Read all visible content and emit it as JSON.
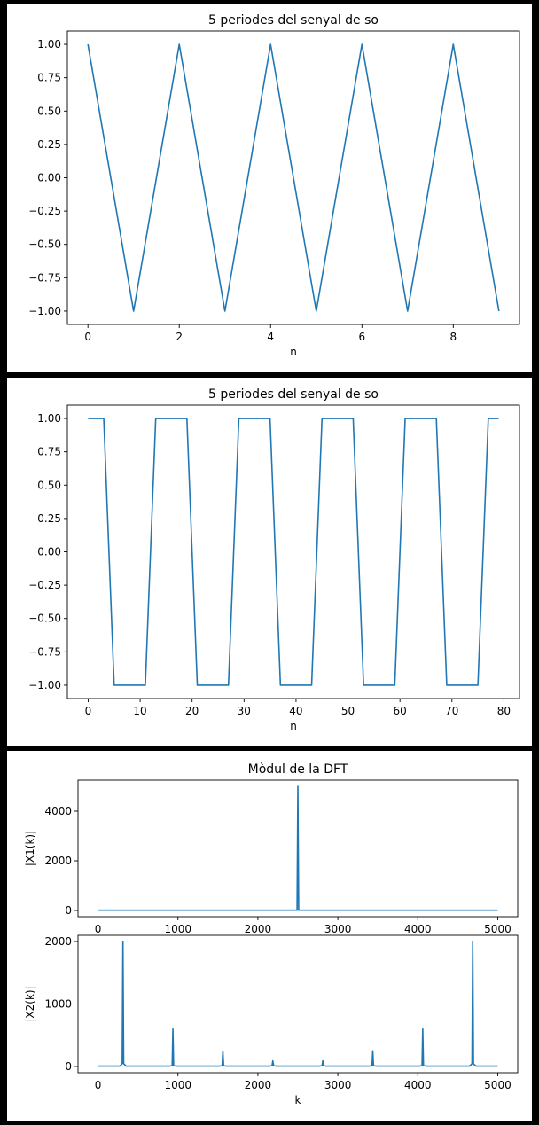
{
  "colors": {
    "line": "#1f77b4",
    "background": "#000000",
    "panel": "#ffffff"
  },
  "chart_data": [
    {
      "type": "line",
      "title": "5 periodes del senyal de so",
      "xlabel": "n",
      "ylabel": "",
      "xlim": [
        -0.45,
        9.45
      ],
      "ylim": [
        -1.1,
        1.1
      ],
      "xticks": [
        0,
        2,
        4,
        6,
        8
      ],
      "yticks": [
        1.0,
        0.75,
        0.5,
        0.25,
        0.0,
        -0.25,
        -0.5,
        -0.75,
        -1.0
      ],
      "ytick_labels": [
        "1.00",
        "0.75",
        "0.50",
        "0.25",
        "0.00",
        "−0.25",
        "−0.50",
        "−0.75",
        "−1.00"
      ],
      "xtick_labels": [
        "0",
        "2",
        "4",
        "6",
        "8"
      ],
      "series": [
        {
          "x": [
            0,
            1,
            2,
            3,
            4,
            5,
            6,
            7,
            8,
            9
          ],
          "values": [
            1,
            -1,
            1,
            -1,
            1,
            -1,
            1,
            -1,
            1,
            -1
          ]
        }
      ]
    },
    {
      "type": "line",
      "title": "5 periodes del senyal de so",
      "xlabel": "n",
      "ylabel": "",
      "xlim": [
        -4,
        83
      ],
      "ylim": [
        -1.1,
        1.1
      ],
      "xticks": [
        0,
        10,
        20,
        30,
        40,
        50,
        60,
        70,
        80
      ],
      "xtick_labels": [
        "0",
        "10",
        "20",
        "30",
        "40",
        "50",
        "60",
        "70",
        "80"
      ],
      "yticks": [
        1.0,
        0.75,
        0.5,
        0.25,
        0.0,
        -0.25,
        -0.5,
        -0.75,
        -1.0
      ],
      "ytick_labels": [
        "1.00",
        "0.75",
        "0.50",
        "0.25",
        "0.00",
        "−0.25",
        "−0.50",
        "−0.75",
        "−1.00"
      ],
      "series": [
        {
          "x": [
            0,
            3,
            5,
            11,
            13,
            19,
            21,
            27,
            29,
            35,
            37,
            43,
            45,
            51,
            53,
            59,
            61,
            67,
            69,
            75,
            77,
            79
          ],
          "values": [
            1,
            1,
            -1,
            -1,
            1,
            1,
            -1,
            -1,
            1,
            1,
            -1,
            -1,
            1,
            1,
            -1,
            -1,
            1,
            1,
            -1,
            -1,
            1,
            1
          ]
        }
      ]
    },
    {
      "type": "line",
      "title": "Mòdul de la DFT",
      "xlabel": "",
      "ylabel": "|X1(k)|",
      "xlim": [
        -250,
        5250
      ],
      "ylim": [
        -250,
        5250
      ],
      "xticks": [
        0,
        1000,
        2000,
        3000,
        4000,
        5000
      ],
      "xtick_labels": [
        "0",
        "1000",
        "2000",
        "3000",
        "4000",
        "5000"
      ],
      "yticks": [
        0,
        2000,
        4000
      ],
      "ytick_labels": [
        "0",
        "2000",
        "4000"
      ],
      "series": [
        {
          "x": [
            0,
            2490,
            2500,
            2510,
            5000
          ],
          "values": [
            10,
            10,
            5000,
            10,
            10
          ]
        }
      ]
    },
    {
      "type": "line",
      "title": "",
      "xlabel": "k",
      "ylabel": "|X2(k)|",
      "xlim": [
        -250,
        5250
      ],
      "ylim": [
        -100,
        2100
      ],
      "xticks": [
        0,
        1000,
        2000,
        3000,
        4000,
        5000
      ],
      "xtick_labels": [
        "0",
        "1000",
        "2000",
        "3000",
        "4000",
        "5000"
      ],
      "yticks": [
        0,
        1000,
        2000
      ],
      "ytick_labels": [
        "0",
        "1000",
        "2000"
      ],
      "peaks": [
        {
          "k": 312,
          "value": 2000
        },
        {
          "k": 937,
          "value": 600
        },
        {
          "k": 1562,
          "value": 250
        },
        {
          "k": 2187,
          "value": 90
        },
        {
          "k": 2812,
          "value": 90
        },
        {
          "k": 3437,
          "value": 250
        },
        {
          "k": 4062,
          "value": 600
        },
        {
          "k": 4687,
          "value": 2000
        }
      ],
      "baseline": 5,
      "xmax": 5000
    }
  ]
}
